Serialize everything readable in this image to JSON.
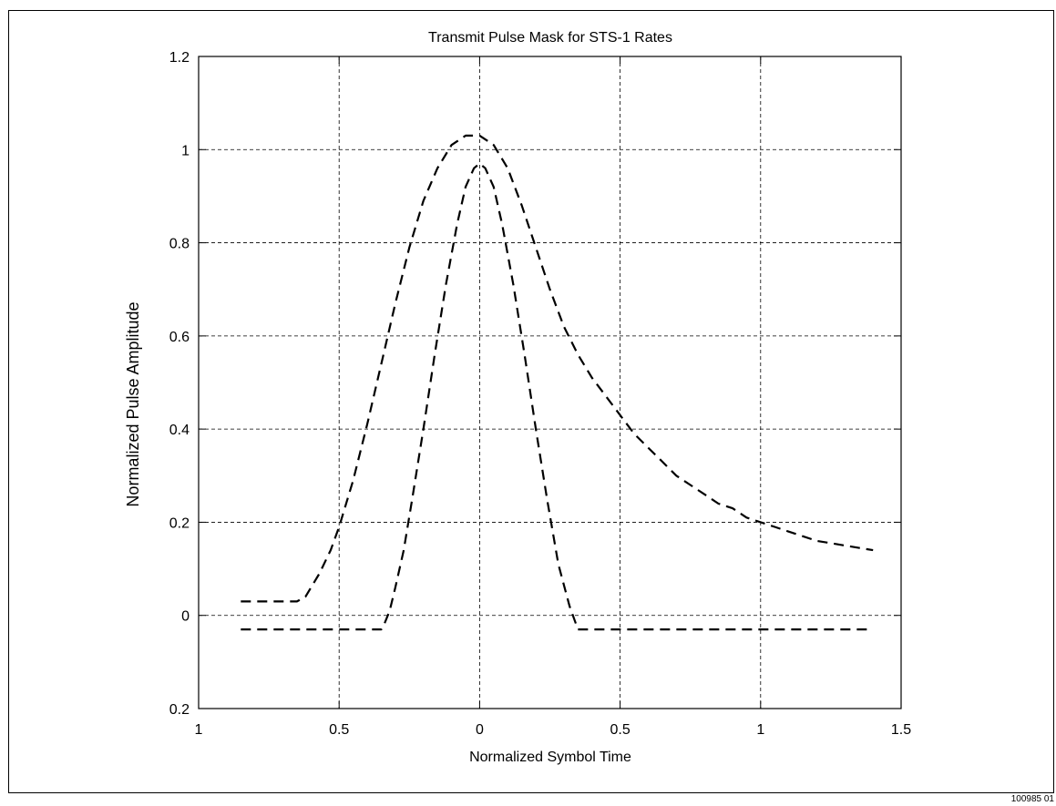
{
  "figure_id": "100985 01",
  "chart_data": {
    "type": "line",
    "title": "Transmit Pulse Mask for STS-1 Rates",
    "xlabel": "Normalized Symbol Time",
    "ylabel": "Normalized Pulse Amplitude",
    "xlim": [
      -1,
      1.5
    ],
    "ylim": [
      -0.2,
      1.2
    ],
    "x_ticks": [
      -1,
      -0.5,
      0,
      0.5,
      1,
      1.5
    ],
    "x_tick_labels": [
      "1",
      "0.5",
      "0",
      "0.5",
      "1",
      "1.5"
    ],
    "y_ticks": [
      -0.2,
      0,
      0.2,
      0.4,
      0.6,
      0.8,
      1,
      1.2
    ],
    "y_tick_labels": [
      "0.2",
      "0",
      "0.2",
      "0.4",
      "0.6",
      "0.8",
      "1",
      "1.2"
    ],
    "grid": true,
    "legend": "none",
    "series": [
      {
        "x": [
          -0.85,
          -0.65,
          -0.62,
          -0.6,
          -0.57,
          -0.53,
          -0.5,
          -0.45,
          -0.4,
          -0.35,
          -0.3,
          -0.25,
          -0.2,
          -0.15,
          -0.1,
          -0.05,
          0,
          0.05,
          0.1,
          0.15,
          0.2,
          0.25,
          0.3,
          0.35,
          0.4,
          0.45,
          0.5,
          0.55,
          0.6,
          0.65,
          0.7,
          0.75,
          0.8,
          0.85,
          0.9,
          0.95,
          1.0,
          1.05,
          1.1,
          1.15,
          1.2,
          1.25,
          1.3,
          1.35,
          1.4
        ],
        "y": [
          0.03,
          0.03,
          0.04,
          0.06,
          0.09,
          0.14,
          0.19,
          0.29,
          0.41,
          0.54,
          0.67,
          0.79,
          0.89,
          0.96,
          1.01,
          1.03,
          1.03,
          1.01,
          0.96,
          0.88,
          0.79,
          0.7,
          0.62,
          0.56,
          0.51,
          0.47,
          0.43,
          0.39,
          0.36,
          0.33,
          0.3,
          0.28,
          0.26,
          0.24,
          0.23,
          0.21,
          0.2,
          0.19,
          0.18,
          0.17,
          0.16,
          0.155,
          0.15,
          0.145,
          0.14
        ]
      },
      {
        "x": [
          -0.85,
          -0.35,
          -0.34,
          -0.32,
          -0.3,
          -0.27,
          -0.24,
          -0.2,
          -0.16,
          -0.12,
          -0.08,
          -0.05,
          -0.02,
          0,
          0.02,
          0.05,
          0.08,
          0.12,
          0.16,
          0.2,
          0.24,
          0.28,
          0.32,
          0.35,
          1.4
        ],
        "y": [
          -0.03,
          -0.03,
          -0.02,
          0.01,
          0.06,
          0.14,
          0.25,
          0.4,
          0.56,
          0.71,
          0.84,
          0.92,
          0.96,
          0.97,
          0.96,
          0.92,
          0.84,
          0.71,
          0.56,
          0.4,
          0.25,
          0.11,
          0.02,
          -0.03,
          -0.03
        ]
      }
    ]
  }
}
